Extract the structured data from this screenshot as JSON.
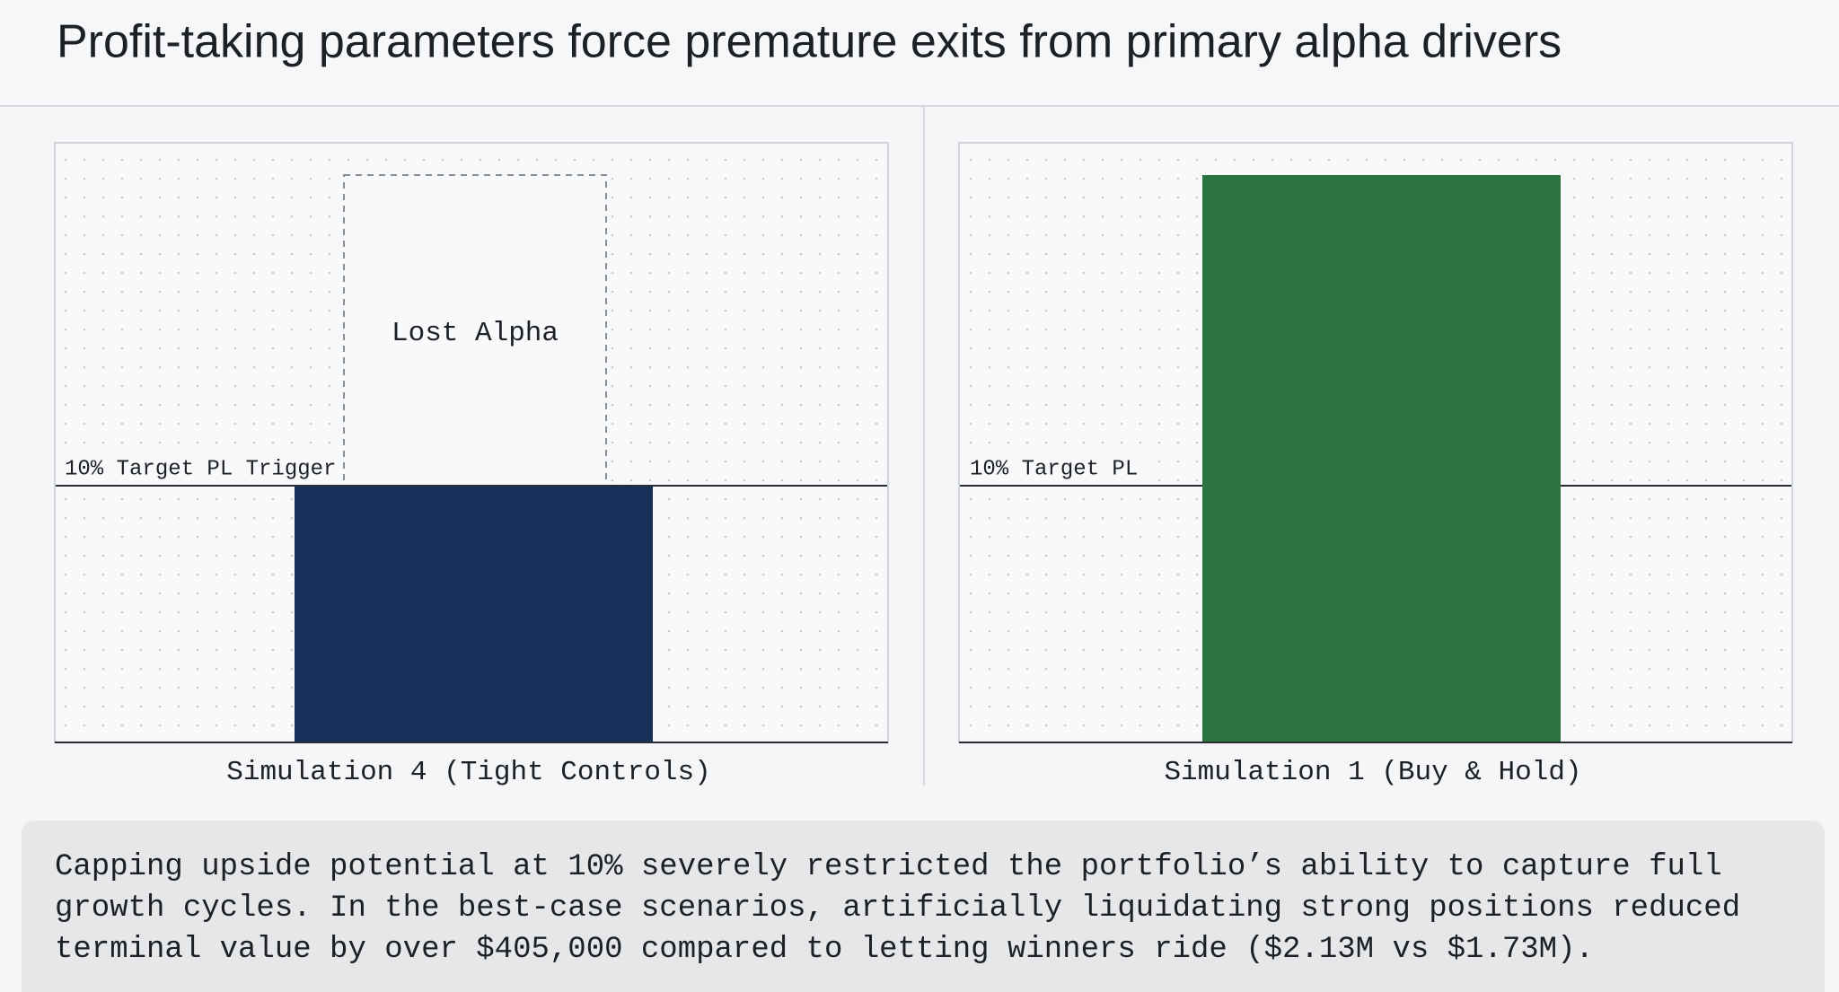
{
  "title": "Profit-taking parameters force premature exits from primary alpha drivers",
  "panels": [
    {
      "threshold_label": "10% Target PL Trigger",
      "annotation": "Lost Alpha",
      "caption": "Simulation 4 (Tight Controls)"
    },
    {
      "threshold_label": "10% Target PL",
      "caption": "Simulation 1 (Buy & Hold)"
    }
  ],
  "note": {
    "lines": [
      "Capping upside potential at 10% severely restricted the portfolio’s ability to capture full",
      "growth cycles. In the best-case scenarios, artificially liquidating strong positions reduced",
      "terminal value by over $405,000 compared to letting winners ride ($2.13M vs $1.73M)."
    ]
  }
}
